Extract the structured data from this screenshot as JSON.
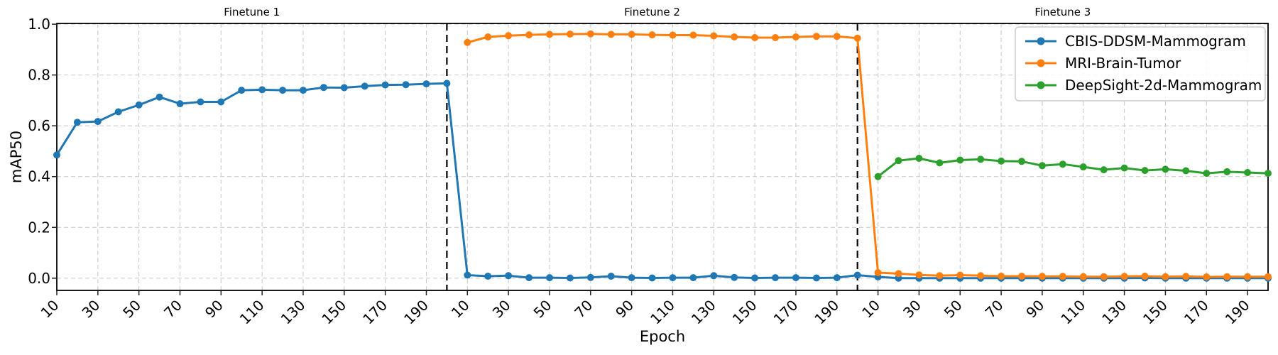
{
  "chart_data": {
    "type": "line",
    "xlabel": "Epoch",
    "ylabel": "mAP50",
    "xlim": [
      10,
      600
    ],
    "ylim": [
      -0.048,
      1.003
    ],
    "yticks": [
      0.0,
      0.2,
      0.4,
      0.6,
      0.8,
      1.0
    ],
    "xtick_labels_per_segment": [
      10,
      30,
      50,
      70,
      90,
      110,
      130,
      150,
      170,
      190
    ],
    "grid": true,
    "separators_x": [
      200,
      400
    ],
    "segment_title_color": "#008000",
    "segments": [
      {
        "title": "Finetune 1",
        "x_start": 0,
        "x_end": 200
      },
      {
        "title": "Finetune 2",
        "x_start": 200,
        "x_end": 400
      },
      {
        "title": "Finetune 3",
        "x_start": 400,
        "x_end": 600
      }
    ],
    "legend_position": "top-right",
    "series": [
      {
        "name": "CBIS-DDSM-Mammogram",
        "color": "#1f77b4",
        "x_start": 10,
        "x_step": 10,
        "values": [
          0.485,
          0.614,
          0.617,
          0.655,
          0.682,
          0.713,
          0.687,
          0.694,
          0.694,
          0.74,
          0.742,
          0.74,
          0.74,
          0.751,
          0.75,
          0.756,
          0.761,
          0.762,
          0.765,
          0.767,
          0.012,
          0.008,
          0.01,
          0.002,
          0.002,
          0.001,
          0.003,
          0.008,
          0.002,
          0.001,
          0.002,
          0.002,
          0.01,
          0.003,
          0.001,
          0.002,
          0.002,
          0.001,
          0.002,
          0.012,
          0.005,
          0.0,
          0.0,
          0.0,
          0.0,
          0.0,
          0.0,
          0.0,
          0.0,
          0.0,
          0.0,
          0.0,
          0.0,
          0.001,
          0.0,
          0.0,
          0.0,
          0.0,
          0.0,
          0.0
        ]
      },
      {
        "name": "MRI-Brain-Tumor",
        "color": "#ff7f0e",
        "x_start": 210,
        "x_step": 10,
        "values": [
          0.928,
          0.95,
          0.955,
          0.958,
          0.96,
          0.961,
          0.962,
          0.96,
          0.96,
          0.958,
          0.957,
          0.957,
          0.954,
          0.95,
          0.947,
          0.947,
          0.95,
          0.952,
          0.952,
          0.945,
          0.022,
          0.018,
          0.013,
          0.01,
          0.012,
          0.01,
          0.008,
          0.008,
          0.007,
          0.007,
          0.006,
          0.006,
          0.007,
          0.008,
          0.006,
          0.007,
          0.005,
          0.006,
          0.006,
          0.006
        ]
      },
      {
        "name": "DeepSight-2d-Mammogram",
        "color": "#2ca02c",
        "x_start": 410,
        "x_step": 10,
        "values": [
          0.4,
          0.463,
          0.472,
          0.454,
          0.465,
          0.468,
          0.461,
          0.46,
          0.443,
          0.449,
          0.438,
          0.427,
          0.434,
          0.424,
          0.429,
          0.423,
          0.413,
          0.419,
          0.416,
          0.413
        ]
      }
    ]
  }
}
